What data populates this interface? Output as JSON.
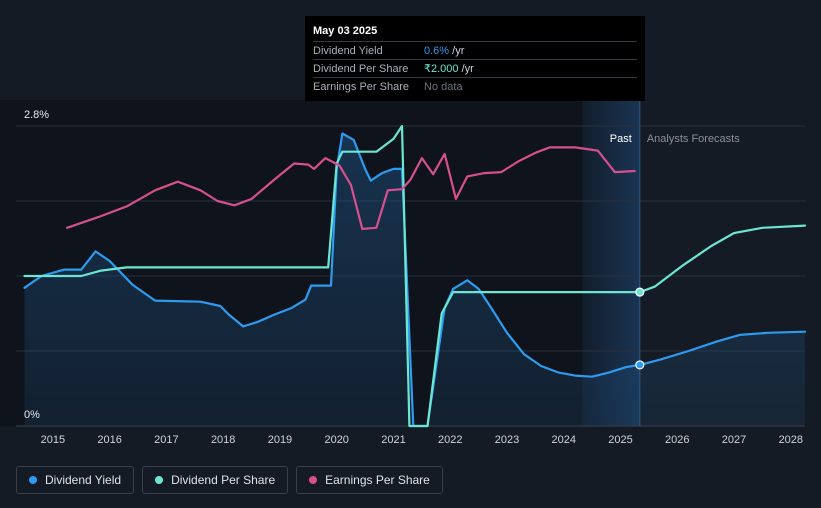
{
  "tooltip": {
    "date": "May 03 2025",
    "rows": [
      {
        "name": "Dividend Yield",
        "value": "0.6%",
        "unit": " /yr"
      },
      {
        "name": "Dividend Per Share",
        "value": "₹2.000",
        "unit": " /yr"
      },
      {
        "name": "Earnings Per Share",
        "value": "No data",
        "unit": ""
      }
    ]
  },
  "region_labels": {
    "past": "Past",
    "forecast": "Analysts Forecasts"
  },
  "legend": [
    {
      "label": "Dividend Yield",
      "color": "#2e9bf0"
    },
    {
      "label": "Dividend Per Share",
      "color": "#6ce6d2"
    },
    {
      "label": "Earnings Per Share",
      "color": "#d64f8e"
    }
  ],
  "chart_data": {
    "type": "line",
    "x_ticks": [
      "2015",
      "2016",
      "2017",
      "2018",
      "2019",
      "2020",
      "2021",
      "2022",
      "2023",
      "2024",
      "2025",
      "2026",
      "2027",
      "2028"
    ],
    "y_tick_labels": [
      "2.8%",
      "0%"
    ],
    "ylim_percent": [
      0,
      2.8
    ],
    "xlim": [
      2014.35,
      2028.25
    ],
    "past_until": 2025.34,
    "past_shade_from": 2024.33,
    "grid": true,
    "legend_position": "bottom-left",
    "series": [
      {
        "name": "Dividend Yield",
        "unit": "%",
        "color": "#2e9bf0",
        "area": true,
        "points": [
          [
            2014.5,
            1.29
          ],
          [
            2014.8,
            1.4
          ],
          [
            2015.2,
            1.46
          ],
          [
            2015.5,
            1.46
          ],
          [
            2015.75,
            1.63
          ],
          [
            2016.0,
            1.54
          ],
          [
            2016.4,
            1.32
          ],
          [
            2016.8,
            1.17
          ],
          [
            2017.6,
            1.16
          ],
          [
            2017.95,
            1.12
          ],
          [
            2018.1,
            1.04
          ],
          [
            2018.35,
            0.93
          ],
          [
            2018.6,
            0.97
          ],
          [
            2018.9,
            1.04
          ],
          [
            2019.2,
            1.1
          ],
          [
            2019.45,
            1.18
          ],
          [
            2019.55,
            1.31
          ],
          [
            2019.9,
            1.31
          ],
          [
            2020.0,
            2.4
          ],
          [
            2020.1,
            2.73
          ],
          [
            2020.3,
            2.67
          ],
          [
            2020.5,
            2.4
          ],
          [
            2020.6,
            2.29
          ],
          [
            2020.8,
            2.36
          ],
          [
            2021.0,
            2.4
          ],
          [
            2021.15,
            2.4
          ],
          [
            2021.35,
            0.0
          ],
          [
            2021.6,
            0.0
          ],
          [
            2021.9,
            1.1
          ],
          [
            2022.05,
            1.28
          ],
          [
            2022.3,
            1.36
          ],
          [
            2022.5,
            1.28
          ],
          [
            2022.7,
            1.12
          ],
          [
            2023.0,
            0.87
          ],
          [
            2023.3,
            0.67
          ],
          [
            2023.6,
            0.56
          ],
          [
            2023.9,
            0.5
          ],
          [
            2024.2,
            0.47
          ],
          [
            2024.5,
            0.46
          ],
          [
            2024.8,
            0.5
          ],
          [
            2025.1,
            0.55
          ],
          [
            2025.34,
            0.57
          ],
          [
            2025.7,
            0.62
          ],
          [
            2026.2,
            0.7
          ],
          [
            2026.7,
            0.79
          ],
          [
            2027.1,
            0.85
          ],
          [
            2027.6,
            0.87
          ],
          [
            2028.25,
            0.88
          ]
        ]
      },
      {
        "name": "Dividend Per Share",
        "unit": "₹",
        "color": "#6ce6d2",
        "area": false,
        "points": [
          [
            2014.5,
            1.4
          ],
          [
            2015.5,
            1.4
          ],
          [
            2015.85,
            1.45
          ],
          [
            2016.3,
            1.48
          ],
          [
            2019.85,
            1.48
          ],
          [
            2020.0,
            2.45
          ],
          [
            2020.1,
            2.56
          ],
          [
            2020.7,
            2.56
          ],
          [
            2021.0,
            2.68
          ],
          [
            2021.15,
            2.8
          ],
          [
            2021.28,
            0.0
          ],
          [
            2021.6,
            0.0
          ],
          [
            2021.85,
            1.05
          ],
          [
            2022.05,
            1.25
          ],
          [
            2025.34,
            1.25
          ],
          [
            2025.6,
            1.3
          ],
          [
            2026.1,
            1.5
          ],
          [
            2026.6,
            1.68
          ],
          [
            2027.0,
            1.8
          ],
          [
            2027.5,
            1.85
          ],
          [
            2028.25,
            1.87
          ]
        ]
      },
      {
        "name": "Earnings Per Share",
        "unit": "₹",
        "color": "#d64f8e",
        "area": false,
        "points": [
          [
            2015.25,
            1.85
          ],
          [
            2015.8,
            1.95
          ],
          [
            2016.3,
            2.05
          ],
          [
            2016.8,
            2.2
          ],
          [
            2017.2,
            2.28
          ],
          [
            2017.6,
            2.2
          ],
          [
            2017.9,
            2.1
          ],
          [
            2018.2,
            2.06
          ],
          [
            2018.5,
            2.12
          ],
          [
            2018.9,
            2.3
          ],
          [
            2019.25,
            2.45
          ],
          [
            2019.5,
            2.44
          ],
          [
            2019.6,
            2.4
          ],
          [
            2019.8,
            2.5
          ],
          [
            2020.05,
            2.43
          ],
          [
            2020.25,
            2.25
          ],
          [
            2020.45,
            1.84
          ],
          [
            2020.7,
            1.85
          ],
          [
            2020.9,
            2.2
          ],
          [
            2021.15,
            2.21
          ],
          [
            2021.3,
            2.3
          ],
          [
            2021.5,
            2.5
          ],
          [
            2021.7,
            2.35
          ],
          [
            2021.9,
            2.54
          ],
          [
            2022.1,
            2.12
          ],
          [
            2022.3,
            2.33
          ],
          [
            2022.6,
            2.36
          ],
          [
            2022.9,
            2.37
          ],
          [
            2023.2,
            2.47
          ],
          [
            2023.5,
            2.55
          ],
          [
            2023.75,
            2.6
          ],
          [
            2024.2,
            2.6
          ],
          [
            2024.6,
            2.57
          ],
          [
            2024.9,
            2.37
          ],
          [
            2025.25,
            2.38
          ]
        ]
      }
    ],
    "markers": [
      {
        "series": "Dividend Yield",
        "x": 2025.34,
        "y": 0.57
      },
      {
        "series": "Dividend Per Share",
        "x": 2025.34,
        "y": 1.25
      }
    ]
  }
}
